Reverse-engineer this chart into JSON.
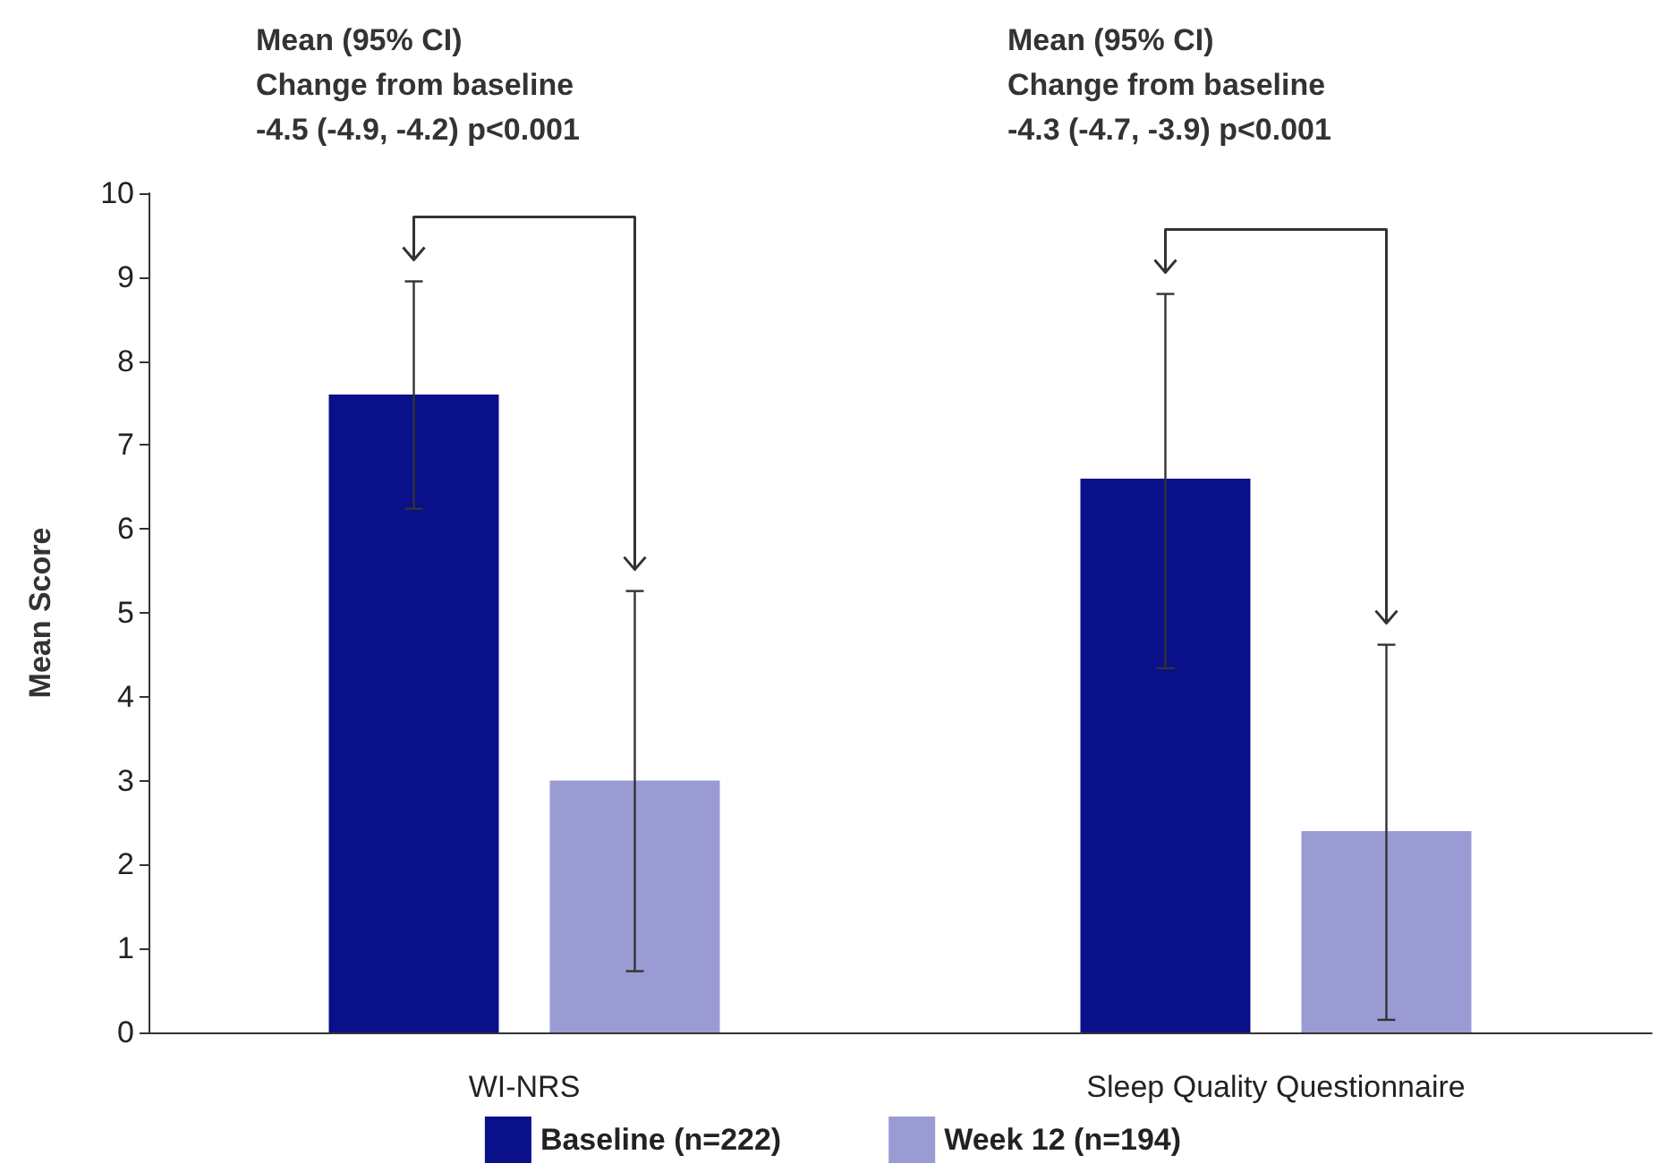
{
  "chart_data": {
    "type": "bar",
    "ylabel": "Mean Score",
    "categories": [
      "WI-NRS",
      "Sleep Quality Questionnaire"
    ],
    "series": [
      {
        "name": "Baseline (n=222)",
        "color": "#0a0f8a",
        "values": [
          7.6,
          6.6
        ],
        "errors": [
          [
            6.24,
            8.95
          ],
          [
            4.34,
            8.8
          ]
        ]
      },
      {
        "name": "Week 12 (n=194)",
        "color": "#9a9bd3",
        "values": [
          3.0,
          2.4
        ],
        "errors": [
          [
            0.73,
            5.26
          ],
          [
            0.15,
            4.62
          ]
        ]
      }
    ],
    "ylim": [
      0,
      10
    ],
    "yticks": [
      0,
      1,
      2,
      3,
      4,
      5,
      6,
      7,
      8,
      9,
      10
    ],
    "grid": false,
    "legend": "bottom",
    "annotations": [
      "Mean (95% CI)\nChange from baseline\n-4.5 (-4.9, -4.2) p<0.001",
      "Mean (95% CI)\nChange from baseline\n-4.3 (-4.7, -3.9) p<0.001"
    ]
  }
}
